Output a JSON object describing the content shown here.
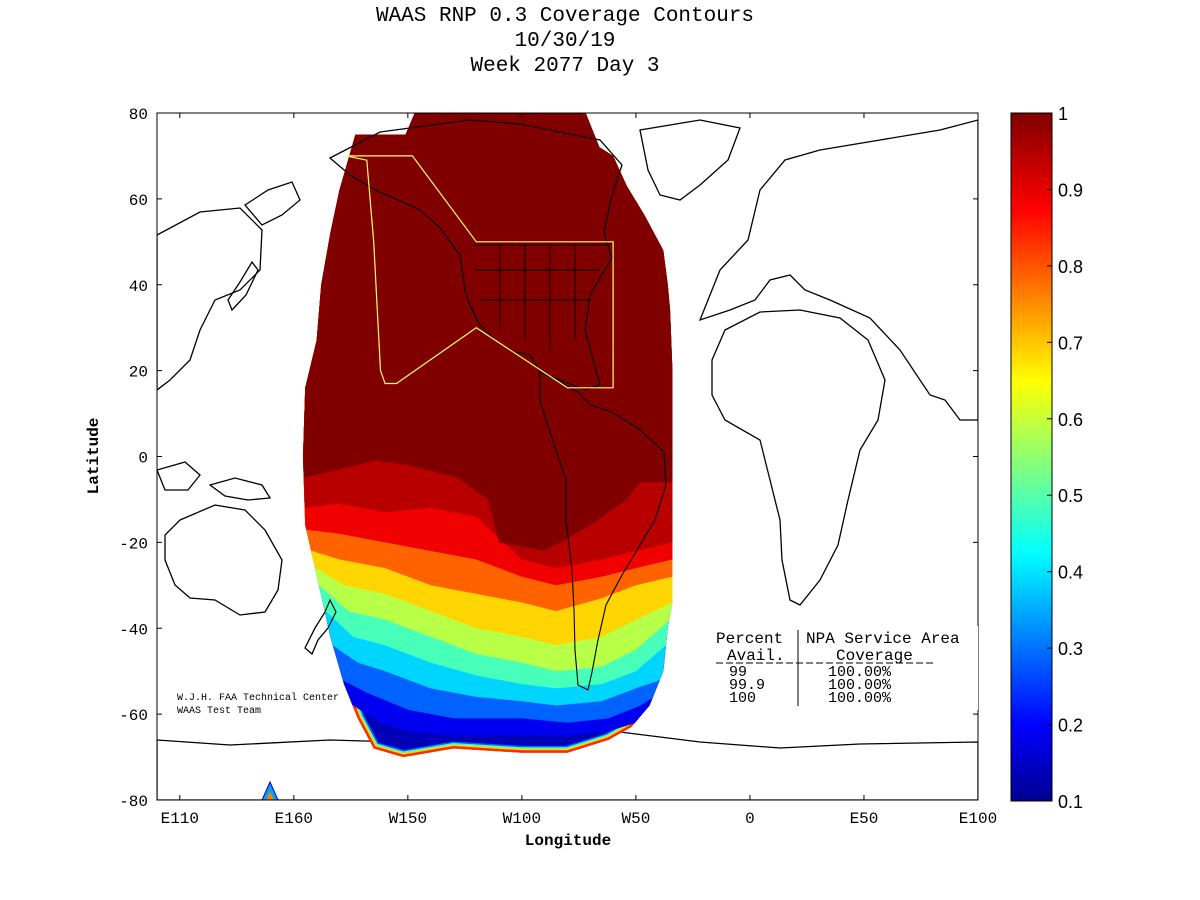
{
  "chart_data": {
    "type": "heatmap",
    "title": [
      "WAAS RNP 0.3 Coverage Contours",
      "10/30/19",
      "Week 2077 Day 3"
    ],
    "xlabel": "Longitude",
    "ylabel": "Latitude",
    "x_ticks": [
      {
        "value": -250,
        "label": "E110"
      },
      {
        "value": -200,
        "label": "E160"
      },
      {
        "value": -150,
        "label": "W150"
      },
      {
        "value": -100,
        "label": "W100"
      },
      {
        "value": -50,
        "label": "W50"
      },
      {
        "value": 0,
        "label": "0"
      },
      {
        "value": 50,
        "label": "E50"
      },
      {
        "value": 100,
        "label": "E100"
      }
    ],
    "y_ticks": [
      80,
      60,
      40,
      20,
      0,
      -20,
      -40,
      -60,
      -80
    ],
    "xlim": [
      -260,
      100
    ],
    "ylim": [
      -80,
      80
    ],
    "colorbar": {
      "ticks": [
        "1",
        "0.9",
        "0.8",
        "0.7",
        "0.6",
        "0.5",
        "0.4",
        "0.3",
        "0.2",
        "0.1"
      ],
      "range": [
        0.1,
        1
      ],
      "colormap": "jet"
    },
    "coverage_boundary": [
      [
        -173,
        75
      ],
      [
        -151,
        75
      ],
      [
        -147,
        80
      ],
      [
        -72,
        80
      ],
      [
        -66,
        72
      ],
      [
        -60,
        70
      ],
      [
        -54,
        63
      ],
      [
        -46,
        56
      ],
      [
        -38,
        48
      ],
      [
        -36,
        40
      ],
      [
        -35,
        34
      ],
      [
        -34,
        20
      ],
      [
        -34,
        -18
      ],
      [
        -34,
        -34
      ],
      [
        -36,
        -40
      ],
      [
        -38,
        -50
      ],
      [
        -44,
        -58
      ],
      [
        -52,
        -63
      ],
      [
        -62,
        -66
      ],
      [
        -80,
        -69
      ],
      [
        -100,
        -69
      ],
      [
        -130,
        -68
      ],
      [
        -152,
        -70
      ],
      [
        -165,
        -68
      ],
      [
        -172,
        -61
      ],
      [
        -178,
        -53
      ],
      [
        -184,
        -42
      ],
      [
        -189,
        -30
      ],
      [
        -195,
        -16
      ],
      [
        -196,
        0
      ],
      [
        -195,
        16
      ],
      [
        -190,
        27
      ],
      [
        -188,
        40
      ],
      [
        -184,
        52
      ],
      [
        -180,
        62
      ]
    ],
    "contour_levels": [
      {
        "level": 1.0,
        "south_edge": [
          [
            -196,
            -5
          ],
          [
            -180,
            -3
          ],
          [
            -164,
            -1
          ],
          [
            -150,
            -2
          ],
          [
            -128,
            -5
          ],
          [
            -115,
            -10
          ],
          [
            -110,
            -20
          ],
          [
            -90,
            -22
          ],
          [
            -70,
            -16
          ],
          [
            -54,
            -10
          ],
          [
            -48,
            -6
          ],
          [
            -36,
            -6
          ],
          [
            -34,
            -6
          ]
        ]
      },
      {
        "level": 0.95,
        "south_edge": [
          [
            -196,
            -12
          ],
          [
            -180,
            -11
          ],
          [
            -160,
            -13
          ],
          [
            -140,
            -12
          ],
          [
            -120,
            -14
          ],
          [
            -100,
            -24
          ],
          [
            -85,
            -26
          ],
          [
            -65,
            -24
          ],
          [
            -50,
            -22
          ],
          [
            -34,
            -20
          ]
        ]
      },
      {
        "level": 0.9,
        "south_edge": [
          [
            -195,
            -17
          ],
          [
            -180,
            -18
          ],
          [
            -160,
            -20
          ],
          [
            -140,
            -22
          ],
          [
            -120,
            -24
          ],
          [
            -100,
            -28
          ],
          [
            -85,
            -30
          ],
          [
            -65,
            -28
          ],
          [
            -50,
            -26
          ],
          [
            -34,
            -24
          ]
        ]
      },
      {
        "level": 0.8,
        "south_edge": [
          [
            -192,
            -22
          ],
          [
            -180,
            -24
          ],
          [
            -160,
            -26
          ],
          [
            -140,
            -30
          ],
          [
            -120,
            -32
          ],
          [
            -100,
            -34
          ],
          [
            -85,
            -36
          ],
          [
            -65,
            -33
          ],
          [
            -50,
            -30
          ],
          [
            -34,
            -28
          ]
        ]
      },
      {
        "level": 0.7,
        "south_edge": [
          [
            -190,
            -26
          ],
          [
            -178,
            -30
          ],
          [
            -160,
            -32
          ],
          [
            -140,
            -36
          ],
          [
            -120,
            -40
          ],
          [
            -100,
            -42
          ],
          [
            -85,
            -44
          ],
          [
            -65,
            -42
          ],
          [
            -50,
            -38
          ],
          [
            -34,
            -34
          ]
        ]
      },
      {
        "level": 0.6,
        "south_edge": [
          [
            -189,
            -30
          ],
          [
            -176,
            -36
          ],
          [
            -160,
            -38
          ],
          [
            -140,
            -42
          ],
          [
            -120,
            -46
          ],
          [
            -100,
            -48
          ],
          [
            -85,
            -50
          ],
          [
            -65,
            -49
          ],
          [
            -50,
            -45
          ],
          [
            -35,
            -38
          ]
        ]
      },
      {
        "level": 0.5,
        "south_edge": [
          [
            -186,
            -36
          ],
          [
            -174,
            -42
          ],
          [
            -160,
            -44
          ],
          [
            -140,
            -48
          ],
          [
            -120,
            -51
          ],
          [
            -100,
            -53
          ],
          [
            -85,
            -54
          ],
          [
            -65,
            -53
          ],
          [
            -50,
            -50
          ],
          [
            -37,
            -44
          ]
        ]
      },
      {
        "level": 0.4,
        "south_edge": [
          [
            -183,
            -44
          ],
          [
            -172,
            -48
          ],
          [
            -160,
            -50
          ],
          [
            -140,
            -54
          ],
          [
            -120,
            -56
          ],
          [
            -100,
            -57
          ],
          [
            -85,
            -58
          ],
          [
            -65,
            -57
          ],
          [
            -50,
            -54
          ],
          [
            -39,
            -52
          ]
        ]
      },
      {
        "level": 0.3,
        "south_edge": [
          [
            -179,
            -52
          ],
          [
            -168,
            -55
          ],
          [
            -150,
            -59
          ],
          [
            -130,
            -61
          ],
          [
            -100,
            -61
          ],
          [
            -80,
            -62
          ],
          [
            -62,
            -61
          ],
          [
            -48,
            -58
          ],
          [
            -42,
            -56
          ]
        ]
      },
      {
        "level": 0.2,
        "south_edge": [
          [
            -174,
            -58
          ],
          [
            -162,
            -62
          ],
          [
            -150,
            -64
          ],
          [
            -130,
            -65
          ],
          [
            -100,
            -65
          ],
          [
            -80,
            -65
          ],
          [
            -62,
            -64
          ],
          [
            -50,
            -62
          ]
        ]
      }
    ],
    "npa_service_area": [
      [
        -177,
        70
      ],
      [
        -148,
        70
      ],
      [
        -120,
        50
      ],
      [
        -60,
        50
      ],
      [
        -60,
        16
      ],
      [
        -80,
        16
      ],
      [
        -120,
        30
      ],
      [
        -155,
        17
      ],
      [
        -160,
        17
      ],
      [
        -162,
        20
      ],
      [
        -165,
        50
      ],
      [
        -168,
        69
      ]
    ],
    "annotation": [
      "W.J.H. FAA Technical Center",
      "WAAS Test Team"
    ],
    "summary_table": {
      "headers": [
        "Percent",
        "NPA Service Area"
      ],
      "subheaders": [
        "Avail.",
        "Coverage"
      ],
      "rows": [
        {
          "avail": "99",
          "coverage": "100.00%"
        },
        {
          "avail": "99.9",
          "coverage": "100.00%"
        },
        {
          "avail": "100",
          "coverage": "100.00%"
        }
      ]
    }
  },
  "colors": {
    "max": "#7f0000",
    "boundary": "#000000",
    "service_area": "#ffff66",
    "land": "#000000"
  }
}
